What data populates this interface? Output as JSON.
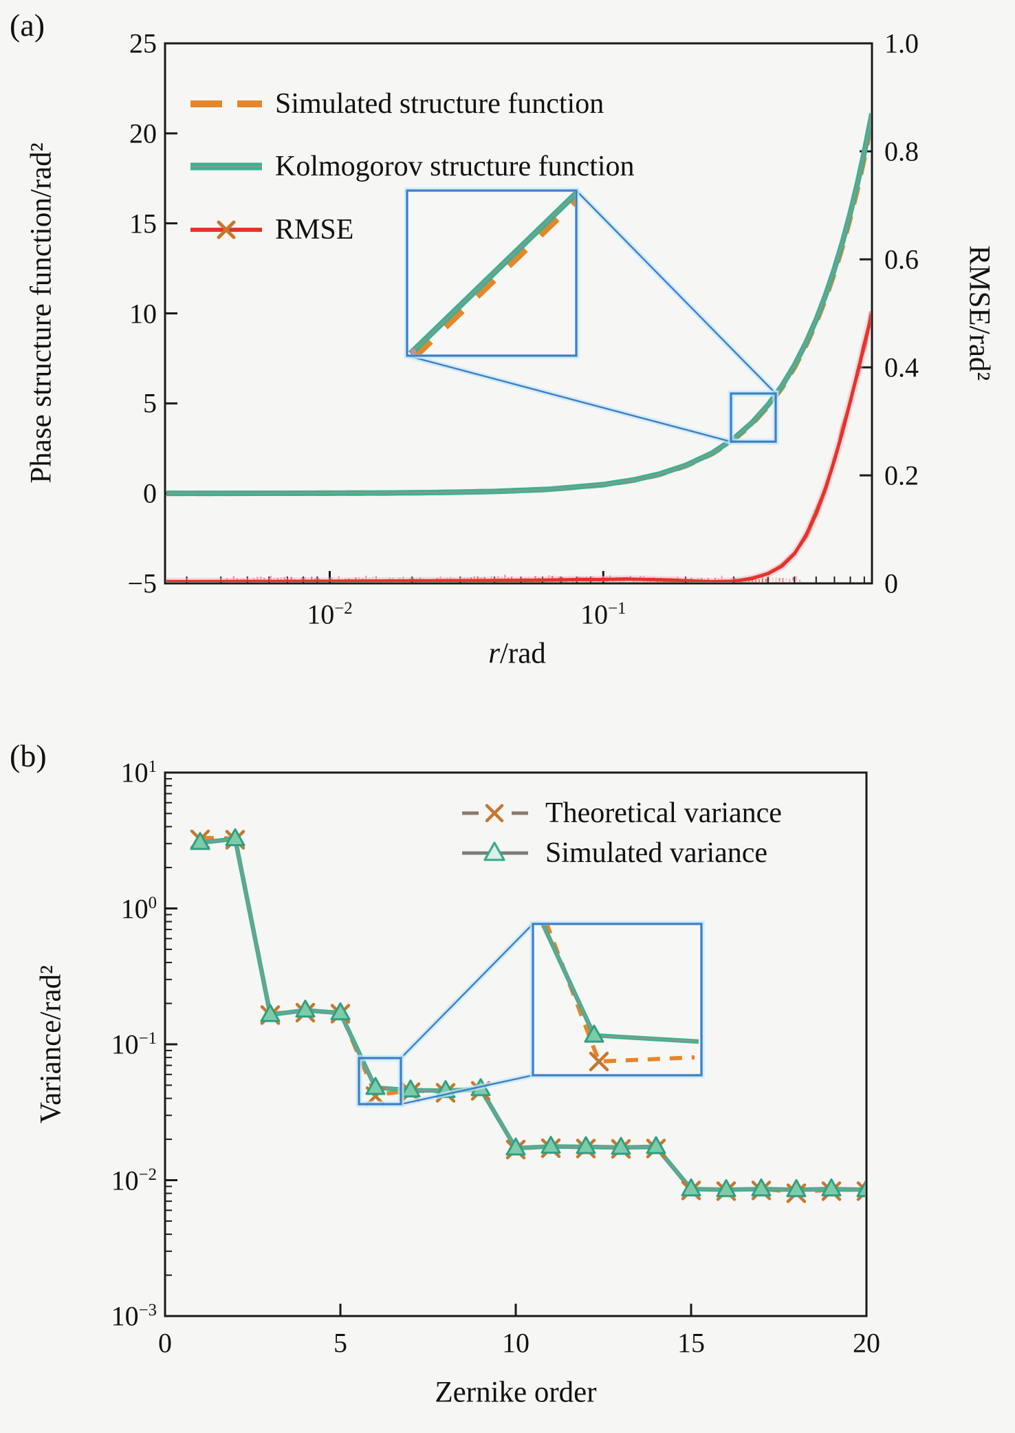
{
  "figure": {
    "panel_a": {
      "label": "(a)",
      "xlabel_italic": "r",
      "xlabel_rest": "/rad",
      "ylabel_left": "Phase structure function/rad²",
      "ylabel_right": "RMSE/rad²",
      "yticks_left": [
        {
          "label": "25",
          "v": 25
        },
        {
          "label": "20",
          "v": 20
        },
        {
          "label": "15",
          "v": 15
        },
        {
          "label": "10",
          "v": 10
        },
        {
          "label": "5",
          "v": 5
        },
        {
          "label": "0",
          "v": 0
        },
        {
          "label": "−5",
          "v": -5
        }
      ],
      "yticks_right": [
        {
          "label": "1.0",
          "v": 1.0
        },
        {
          "label": "0.8",
          "v": 0.8
        },
        {
          "label": "0.6",
          "v": 0.6
        },
        {
          "label": "0.4",
          "v": 0.4
        },
        {
          "label": "0.2",
          "v": 0.2
        },
        {
          "label": "0",
          "v": 0
        }
      ],
      "xticks": [
        {
          "base": "10",
          "exp": "−2",
          "r": 0.01
        },
        {
          "base": "10",
          "exp": "−1",
          "r": 0.1
        }
      ]
    },
    "panel_b": {
      "label": "(b)",
      "xlabel": "Zernike order",
      "ylabel": "Variance/rad²",
      "yticks": [
        {
          "base": "10",
          "exp": "1",
          "v": 10
        },
        {
          "base": "10",
          "exp": "0",
          "v": 1
        },
        {
          "base": "10",
          "exp": "−1",
          "v": 0.1
        },
        {
          "base": "10",
          "exp": "−2",
          "v": 0.01
        },
        {
          "base": "10",
          "exp": "−3",
          "v": 0.001
        }
      ],
      "xticks": [
        {
          "label": "0",
          "v": 0
        },
        {
          "label": "5",
          "v": 5
        },
        {
          "label": "10",
          "v": 10
        },
        {
          "label": "15",
          "v": 15
        },
        {
          "label": "20",
          "v": 20
        }
      ]
    }
  },
  "chart_data": [
    {
      "id": "phase_structure_function",
      "type": "line",
      "xscale": "log",
      "xlabel": "r/rad",
      "ylabel_left": "Phase structure function/rad²",
      "ylabel_right": "RMSE/rad²",
      "xlim": [
        0.0025,
        0.96
      ],
      "ylim_left": [
        -5,
        25
      ],
      "ylim_right": [
        0,
        1.0
      ],
      "grid": false,
      "legend_position": "upper left",
      "inset_note": "zoom box over overlapping curves near r = 0.29 to 0.43",
      "series": [
        {
          "name": "Simulated structure function",
          "axis": "left",
          "style": "dashed",
          "legend_icon": "dashes-orange",
          "color": "#e5862b",
          "x": [
            0.0025,
            0.004,
            0.0063,
            0.01,
            0.016,
            0.025,
            0.04,
            0.063,
            0.1,
            0.13,
            0.16,
            0.2,
            0.25,
            0.3,
            0.35,
            0.4,
            0.45,
            0.5,
            0.55,
            0.6,
            0.65,
            0.7,
            0.75,
            0.8,
            0.85,
            0.9,
            0.96
          ],
          "y": [
            0.001,
            0.0023,
            0.0048,
            0.0103,
            0.0227,
            0.0473,
            0.104,
            0.221,
            0.48,
            0.743,
            1.05,
            1.53,
            2.21,
            2.99,
            3.87,
            4.84,
            5.88,
            7.01,
            8.22,
            9.5,
            10.85,
            12.28,
            13.78,
            15.35,
            16.98,
            18.68,
            20.78
          ]
        },
        {
          "name": "Kolmogorov structure function",
          "axis": "left",
          "style": "solid",
          "legend_icon": "solid-teal",
          "color": "#3cb191",
          "x": [
            0.0025,
            0.004,
            0.0063,
            0.01,
            0.016,
            0.025,
            0.04,
            0.063,
            0.1,
            0.13,
            0.16,
            0.2,
            0.25,
            0.3,
            0.35,
            0.4,
            0.45,
            0.5,
            0.55,
            0.6,
            0.65,
            0.7,
            0.75,
            0.8,
            0.85,
            0.9,
            0.96
          ],
          "y": [
            0.001,
            0.0023,
            0.0049,
            0.0105,
            0.023,
            0.048,
            0.106,
            0.224,
            0.487,
            0.754,
            1.07,
            1.55,
            2.24,
            3.04,
            3.93,
            4.91,
            5.97,
            7.12,
            8.35,
            9.64,
            11.02,
            12.47,
            13.99,
            15.58,
            17.24,
            18.96,
            21.1
          ]
        },
        {
          "name": "RMSE",
          "axis": "right",
          "style": "solid-x",
          "legend_icon": "red-x",
          "color": "#e3342b",
          "x": [
            0.0025,
            0.01,
            0.03,
            0.06,
            0.08,
            0.1,
            0.12,
            0.15,
            0.18,
            0.2,
            0.25,
            0.3,
            0.35,
            0.4,
            0.45,
            0.5,
            0.55,
            0.6,
            0.65,
            0.7,
            0.75,
            0.8,
            0.85,
            0.9,
            0.96
          ],
          "y": [
            0.003,
            0.004,
            0.005,
            0.006,
            0.007,
            0.007,
            0.008,
            0.007,
            0.006,
            0.005,
            0.003,
            0.004,
            0.009,
            0.018,
            0.032,
            0.055,
            0.088,
            0.13,
            0.177,
            0.228,
            0.282,
            0.337,
            0.39,
            0.443,
            0.5
          ]
        }
      ]
    },
    {
      "id": "zernike_variance",
      "type": "line",
      "xscale": "linear",
      "yscale": "log",
      "xlabel": "Zernike order",
      "ylabel": "Variance/rad²",
      "xlim": [
        0,
        20
      ],
      "ylim": [
        0.001,
        10
      ],
      "grid": false,
      "legend_position": "upper right",
      "inset_note": "zoom box over orders 5.5 to 6.7 where theoretical dips below simulated",
      "categories": [
        1,
        2,
        3,
        4,
        5,
        6,
        7,
        8,
        9,
        10,
        11,
        12,
        13,
        14,
        15,
        16,
        17,
        18,
        19,
        20
      ],
      "series": [
        {
          "name": "Theoretical variance",
          "style": "dashed-x",
          "legend_icon": "dash-x-orange",
          "color": "#e5862b",
          "marker_color": "#c8762f",
          "values": [
            3.3,
            3.28,
            0.168,
            0.175,
            0.172,
            0.0425,
            0.0455,
            0.045,
            0.0465,
            0.0172,
            0.0176,
            0.0175,
            0.0174,
            0.0175,
            0.0086,
            0.0085,
            0.0086,
            0.0082,
            0.0085,
            0.0085
          ]
        },
        {
          "name": "Simulated variance",
          "style": "solid-triangle",
          "legend_icon": "solid-triangle",
          "color": "#3cb191",
          "marker_color": "#2f9f7f",
          "values": [
            3.05,
            3.25,
            0.165,
            0.178,
            0.17,
            0.048,
            0.046,
            0.0455,
            0.047,
            0.0172,
            0.0177,
            0.0176,
            0.0174,
            0.0176,
            0.0086,
            0.0085,
            0.0086,
            0.0085,
            0.0086,
            0.0085
          ]
        }
      ]
    }
  ],
  "colors": {
    "teal": "#3cb191",
    "teal_core": "#8f968f",
    "orange": "#e5862b",
    "marker_x": "#c8762f",
    "red": "#e3342b",
    "red_glow": "#f5a9c0",
    "blue_box": "#3f7ec6",
    "blue_glow": "#c3e9f8",
    "legend_gray": "#7d7d78",
    "axis": "#1a1a1a",
    "text": "#111111",
    "background": "#f6f6f4"
  }
}
